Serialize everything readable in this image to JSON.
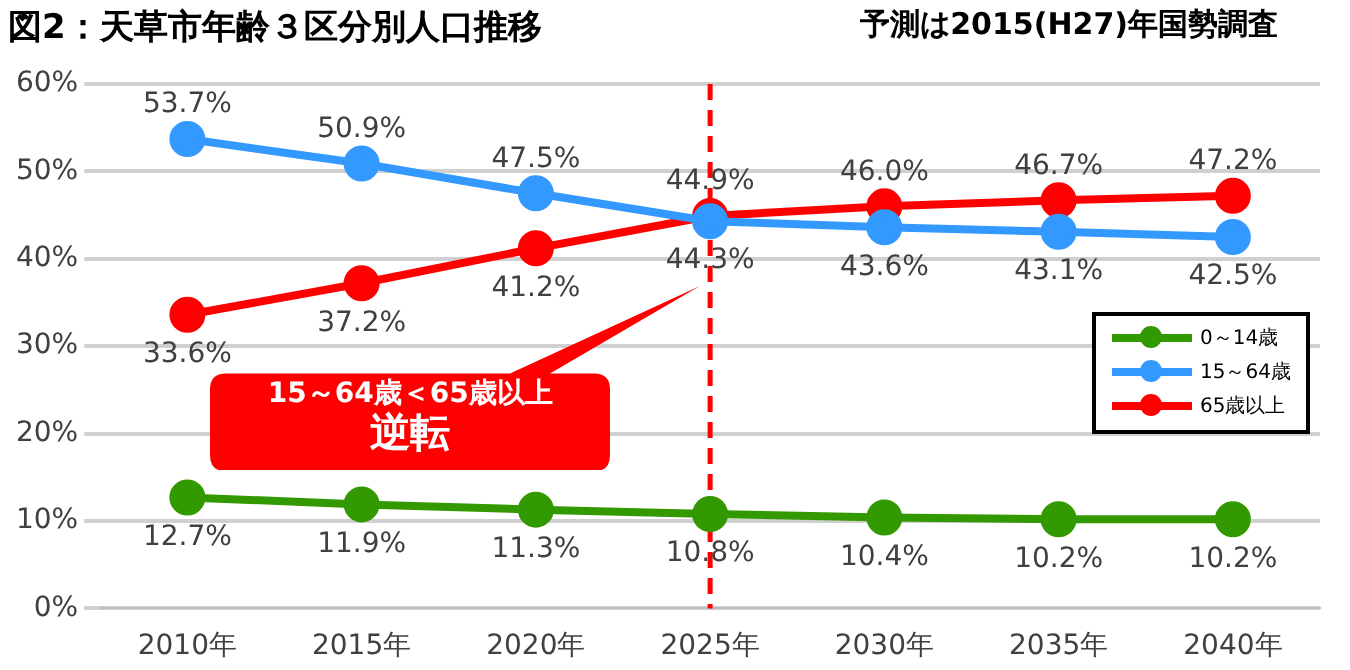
{
  "chart_data": {
    "type": "line",
    "title": "図2：天草市年齢３区分別人口推移",
    "subtitle": "予測は2015(H27)年国勢調査",
    "categories": [
      "2010年",
      "2015年",
      "2020年",
      "2025年",
      "2030年",
      "2035年",
      "2040年"
    ],
    "series": [
      {
        "name": "0～14歳",
        "color": "#339900",
        "values": [
          12.7,
          11.9,
          11.3,
          10.8,
          10.4,
          10.2,
          10.2
        ],
        "value_labels": [
          "12.7%",
          "11.9%",
          "11.3%",
          "10.8%",
          "10.4%",
          "10.2%",
          "10.2%"
        ]
      },
      {
        "name": "15～64歳",
        "color": "#3399ff",
        "values": [
          53.7,
          50.9,
          47.5,
          44.3,
          43.6,
          43.1,
          42.5
        ],
        "value_labels": [
          "53.7%",
          "50.9%",
          "47.5%",
          "44.3%",
          "43.6%",
          "43.1%",
          "42.5%"
        ]
      },
      {
        "name": "65歳以上",
        "color": "#ff0000",
        "values": [
          33.6,
          37.2,
          41.2,
          44.9,
          46.0,
          46.7,
          47.2
        ],
        "value_labels": [
          "33.6%",
          "37.2%",
          "41.2%",
          "44.9%",
          "46.0%",
          "46.7%",
          "47.2%"
        ]
      }
    ],
    "ylim": [
      0,
      60
    ],
    "yticks": [
      {
        "value": 0,
        "label": "0%"
      },
      {
        "value": 10,
        "label": "10%"
      },
      {
        "value": 20,
        "label": "20%"
      },
      {
        "value": 30,
        "label": "30%"
      },
      {
        "value": 40,
        "label": "40%"
      },
      {
        "value": 50,
        "label": "50%"
      },
      {
        "value": 60,
        "label": "60%"
      }
    ],
    "grid": "y",
    "legend": "right",
    "marker": "circle",
    "line_style": "solid",
    "ref_lines": [
      {
        "axis": "x",
        "value": "2025年",
        "color": "#ff0000",
        "line_style": "dashed"
      }
    ],
    "annotations": [
      "15～64歳＜65歳以上",
      "逆転"
    ]
  }
}
